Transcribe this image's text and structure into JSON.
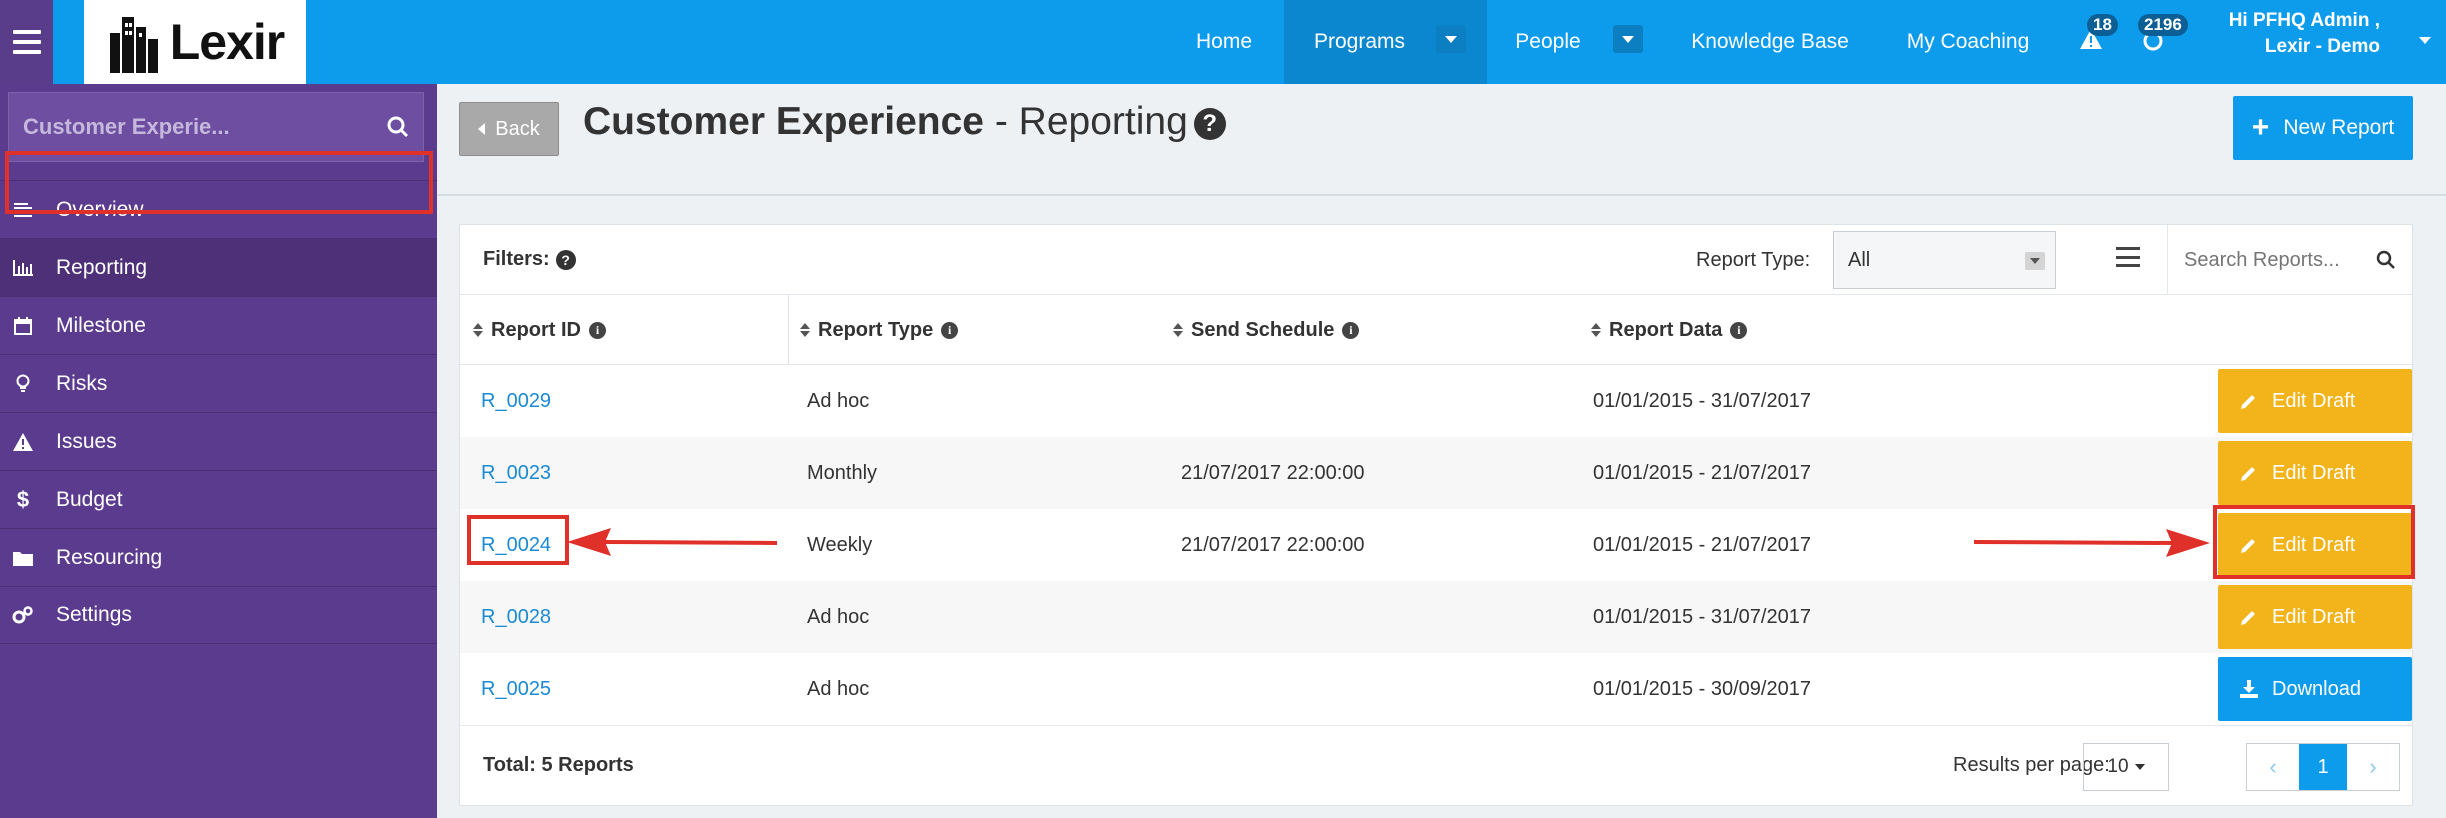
{
  "topbar": {
    "logo_text": "Lexir",
    "nav": [
      "Home",
      "Programs",
      "People",
      "Knowledge Base",
      "My Coaching"
    ],
    "alerts_count": "18",
    "messages_count": "2196",
    "user_line1": "Hi PFHQ Admin ,",
    "user_line2": "Lexir - Demo"
  },
  "sidebar": {
    "search_text": "Customer Experie...",
    "items": [
      {
        "label": "Overview",
        "icon": "list-icon"
      },
      {
        "label": "Reporting",
        "icon": "bar-chart-icon"
      },
      {
        "label": "Milestone",
        "icon": "calendar-icon"
      },
      {
        "label": "Risks",
        "icon": "lightbulb-icon"
      },
      {
        "label": "Issues",
        "icon": "warning-icon"
      },
      {
        "label": "Budget",
        "icon": "dollar-icon"
      },
      {
        "label": "Resourcing",
        "icon": "folder-icon"
      },
      {
        "label": "Settings",
        "icon": "cogs-icon"
      }
    ]
  },
  "header": {
    "back_label": "Back",
    "title_bold": "Customer Experience",
    "title_rest": " - Reporting",
    "new_report_label": "New Report"
  },
  "filters": {
    "label": "Filters:",
    "report_type_label": "Report Type:",
    "report_type_value": "All",
    "search_placeholder": "Search Reports..."
  },
  "table": {
    "columns": [
      "Report ID",
      "Report Type",
      "Send Schedule",
      "Report Data"
    ],
    "rows": [
      {
        "id": "R_0029",
        "type": "Ad hoc",
        "schedule": "",
        "data": "01/01/2015 - 31/07/2017",
        "action": "Edit Draft"
      },
      {
        "id": "R_0023",
        "type": "Monthly",
        "schedule": "21/07/2017 22:00:00",
        "data": "01/01/2015 - 21/07/2017",
        "action": "Edit Draft"
      },
      {
        "id": "R_0024",
        "type": "Weekly",
        "schedule": "21/07/2017 22:00:00",
        "data": "01/01/2015 - 21/07/2017",
        "action": "Edit Draft"
      },
      {
        "id": "R_0028",
        "type": "Ad hoc",
        "schedule": "",
        "data": "01/01/2015 - 31/07/2017",
        "action": "Edit Draft"
      },
      {
        "id": "R_0025",
        "type": "Ad hoc",
        "schedule": "",
        "data": "01/01/2015 - 30/09/2017",
        "action": "Download"
      }
    ]
  },
  "footer": {
    "total": "Total: 5 Reports",
    "results_per_page_label": "Results per page:",
    "results_per_page_value": "10",
    "current_page": "1"
  },
  "colors": {
    "topbar": "#0d9bec",
    "sidebar": "#5b3b8d",
    "edit_button": "#f2b41a",
    "download_button": "#0d9bec",
    "annotation": "#e0302a"
  }
}
